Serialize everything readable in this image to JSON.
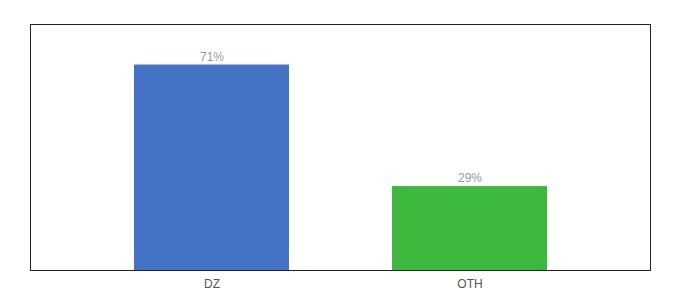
{
  "chart_data": {
    "type": "bar",
    "categories": [
      "DZ",
      "OTH"
    ],
    "values": [
      71,
      29
    ],
    "colors": [
      "#4472c4",
      "#3cb83c"
    ],
    "value_labels": [
      "71%",
      "29%"
    ],
    "data_labels": true,
    "ylim": [
      0,
      85
    ],
    "yticks": [],
    "tick_labels": "x"
  }
}
